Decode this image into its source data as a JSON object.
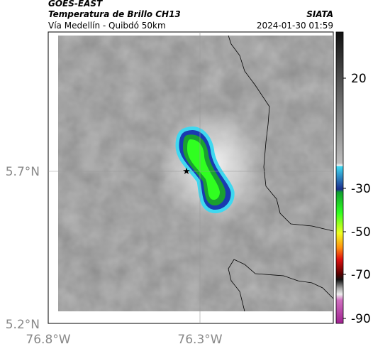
{
  "header": {
    "satellite": "GOES-EAST",
    "product": "Temperatura de Brillo CH13",
    "agency": "SIATA",
    "route": "Vía Medellín - Quibdó 50km",
    "timestamp": "2024-01-30 01:59"
  },
  "map": {
    "lat_labels": [
      "5.7°N",
      "5.2°N"
    ],
    "lon_labels": [
      "76.8°W",
      "76.3°W"
    ]
  },
  "colorbar": {
    "ticks": [
      20,
      -30,
      -50,
      -70,
      -90
    ]
  }
}
